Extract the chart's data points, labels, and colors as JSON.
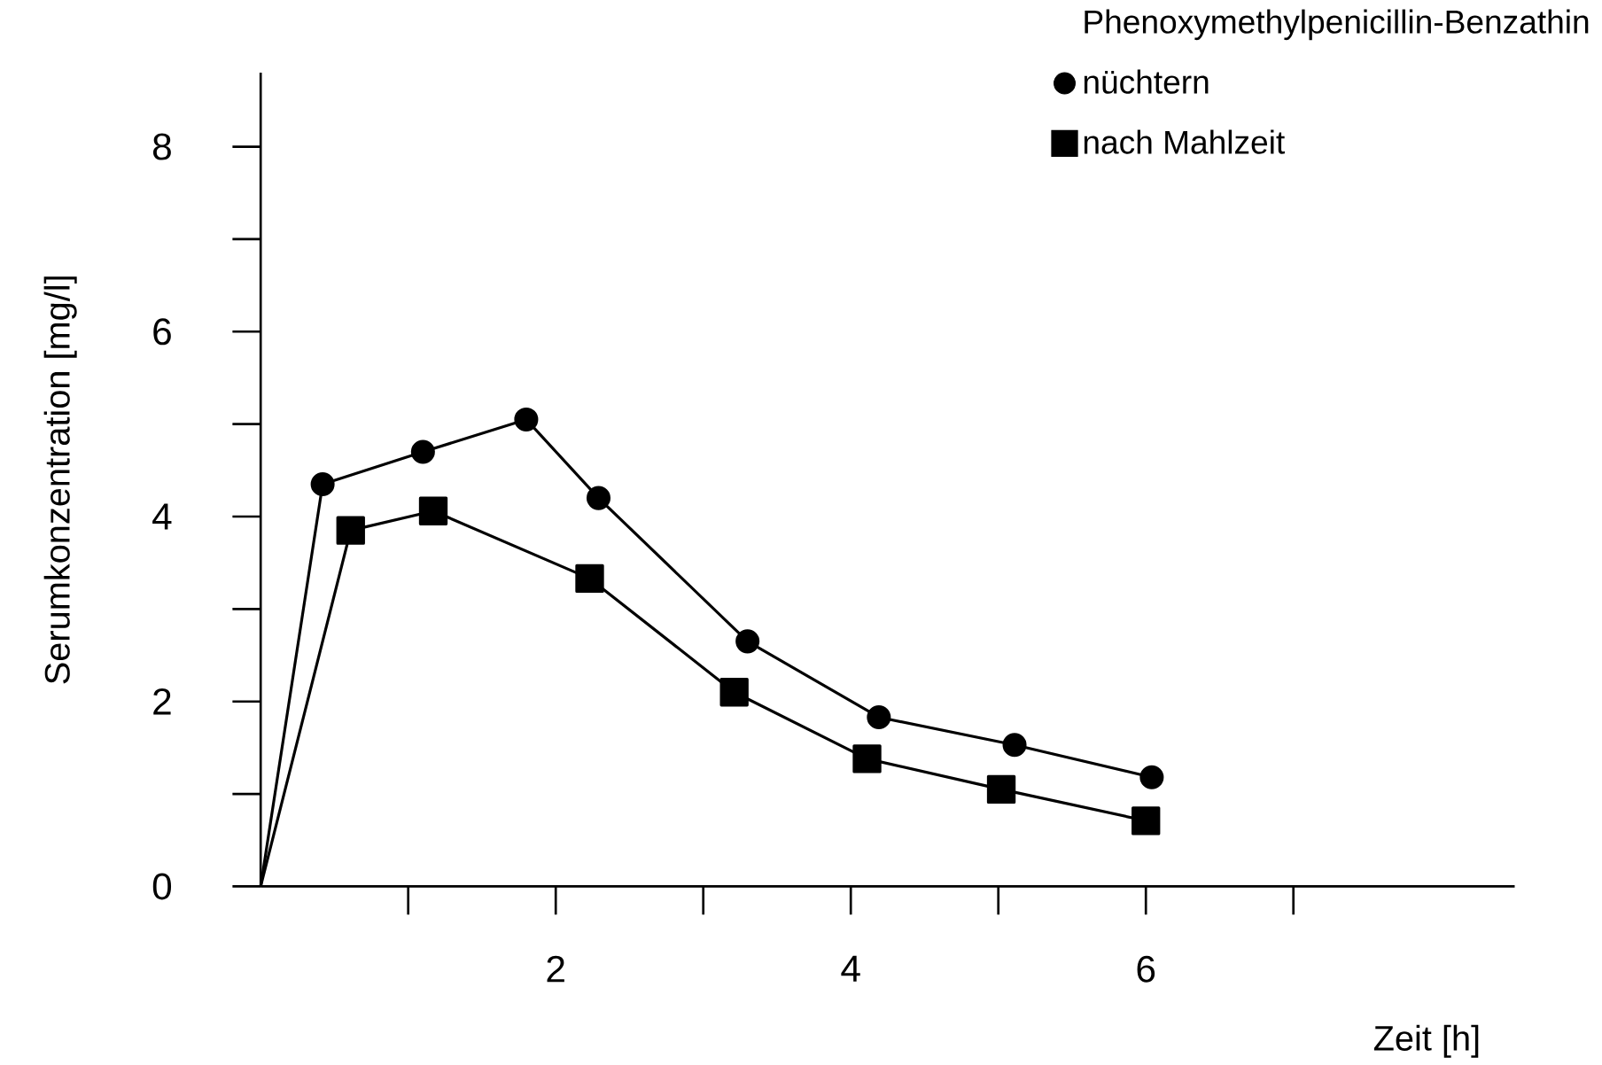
{
  "chart_data": {
    "type": "line",
    "legend_title": "Phenoxymethylpenicillin-Benzathin",
    "xlabel": "Zeit [h]",
    "ylabel": "Serumkonzentration [mg/l]",
    "xlim": [
      0,
      8.5
    ],
    "ylim": [
      0,
      8.8
    ],
    "xticks": [
      {
        "value": 1,
        "label": null
      },
      2,
      {
        "value": 3,
        "label": null
      },
      4,
      {
        "value": 5,
        "label": null
      },
      6,
      {
        "value": 7,
        "label": null
      }
    ],
    "yticks": [
      0,
      {
        "value": 1,
        "label": null
      },
      2,
      {
        "value": 3,
        "label": null
      },
      4,
      {
        "value": 5,
        "label": null
      },
      6,
      {
        "value": 7,
        "label": null
      },
      8
    ],
    "legend": "top right",
    "grid": false,
    "line_style": "solid",
    "series": [
      {
        "name": "nüchtern",
        "color": "#000000",
        "marker": "circle",
        "x": [
          0,
          0.42,
          1.1,
          1.8,
          2.29,
          3.3,
          4.19,
          5.11,
          6.04
        ],
        "values": [
          0,
          4.35,
          4.7,
          5.05,
          4.2,
          2.65,
          1.83,
          1.53,
          1.18
        ]
      },
      {
        "name": "nach Mahlzeit",
        "color": "#000000",
        "marker": "square",
        "x": [
          0,
          0.61,
          1.17,
          2.23,
          3.21,
          4.11,
          5.02,
          6.0
        ],
        "values": [
          0,
          3.85,
          4.06,
          3.33,
          2.1,
          1.38,
          1.05,
          0.71
        ]
      }
    ]
  }
}
